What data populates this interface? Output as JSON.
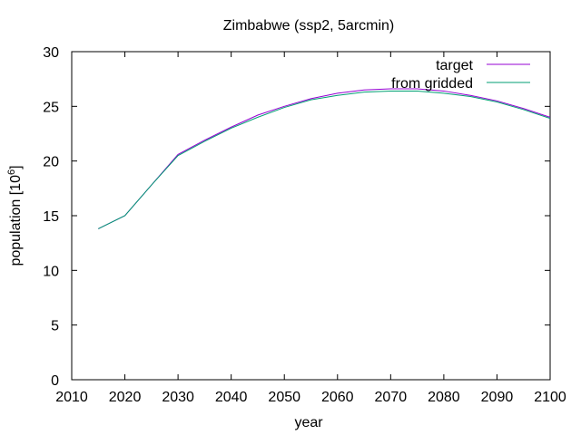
{
  "chart_data": {
    "type": "line",
    "title": "Zimbabwe (ssp2, 5arcmin)",
    "xlabel": "year",
    "ylabel_prefix": "population [10",
    "ylabel_exp": "6",
    "ylabel_suffix": "]",
    "xlim": [
      2010,
      2100
    ],
    "ylim": [
      0,
      30
    ],
    "xticks": [
      2010,
      2020,
      2030,
      2040,
      2050,
      2060,
      2070,
      2080,
      2090,
      2100
    ],
    "yticks": [
      0,
      5,
      10,
      15,
      20,
      25,
      30
    ],
    "grid": false,
    "legend_position": "top-right",
    "x": [
      2015,
      2020,
      2025,
      2030,
      2035,
      2040,
      2045,
      2050,
      2055,
      2060,
      2065,
      2070,
      2075,
      2080,
      2085,
      2090,
      2095,
      2100
    ],
    "series": [
      {
        "name": "target",
        "color": "#9400d3",
        "values": [
          13.8,
          15.0,
          17.8,
          20.6,
          21.9,
          23.1,
          24.2,
          25.0,
          25.7,
          26.2,
          26.5,
          26.6,
          26.6,
          26.4,
          26.0,
          25.5,
          24.8,
          24.0
        ]
      },
      {
        "name": "from gridded",
        "color": "#009e73",
        "values": [
          13.8,
          15.0,
          17.8,
          20.5,
          21.8,
          23.0,
          24.0,
          24.9,
          25.6,
          26.0,
          26.3,
          26.4,
          26.4,
          26.2,
          25.9,
          25.4,
          24.7,
          23.9
        ]
      }
    ]
  }
}
